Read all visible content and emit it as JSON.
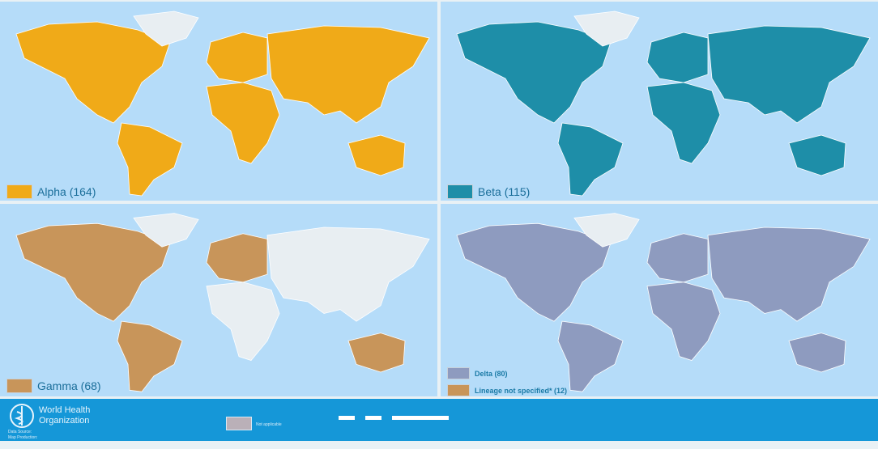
{
  "panels": [
    {
      "label": "Alpha (164)",
      "color": "#f0aa18",
      "fills": {
        "na": "#f0aa18",
        "gl": "#e8eef2",
        "sa": "#f0aa18",
        "eu": "#f0aa18",
        "af": "#f0aa18",
        "as": "#f0aa18",
        "au": "#f0aa18"
      }
    },
    {
      "label": "Beta (115)",
      "color": "#1e8ea8",
      "fills": {
        "na": "#1e8ea8",
        "gl": "#e8eef2",
        "sa": "#1e8ea8",
        "eu": "#1e8ea8",
        "af": "#1e8ea8",
        "as": "#1e8ea8",
        "au": "#1e8ea8"
      }
    },
    {
      "label": "Gamma (68)",
      "color": "#c8955a",
      "fills": {
        "na": "#c8955a",
        "gl": "#e8eef2",
        "sa": "#c8955a",
        "eu": "#c8955a",
        "af": "#e8eef2",
        "as": "#e8eef2",
        "au": "#c8955a"
      }
    },
    {
      "legend": [
        {
          "label": "Delta (80)",
          "color": "#8e9bbf"
        },
        {
          "label": "Lineage not specified* (12)",
          "color": "#c8955a"
        }
      ],
      "fills": {
        "na": "#8e9bbf",
        "gl": "#e8eef2",
        "sa": "#8e9bbf",
        "eu": "#8e9bbf",
        "af": "#8e9bbf",
        "as": "#8e9bbf",
        "au": "#8e9bbf"
      }
    }
  ],
  "footer": {
    "org_line1": "World Health",
    "org_line2": "Organization",
    "data_source": "Data Source:",
    "map_production": "Map Production:",
    "legend_na": "Not applicable"
  },
  "colors": {
    "ocean": "#b5dcf9",
    "no_data_land": "#e8eef2",
    "footer": "#1597d8"
  }
}
